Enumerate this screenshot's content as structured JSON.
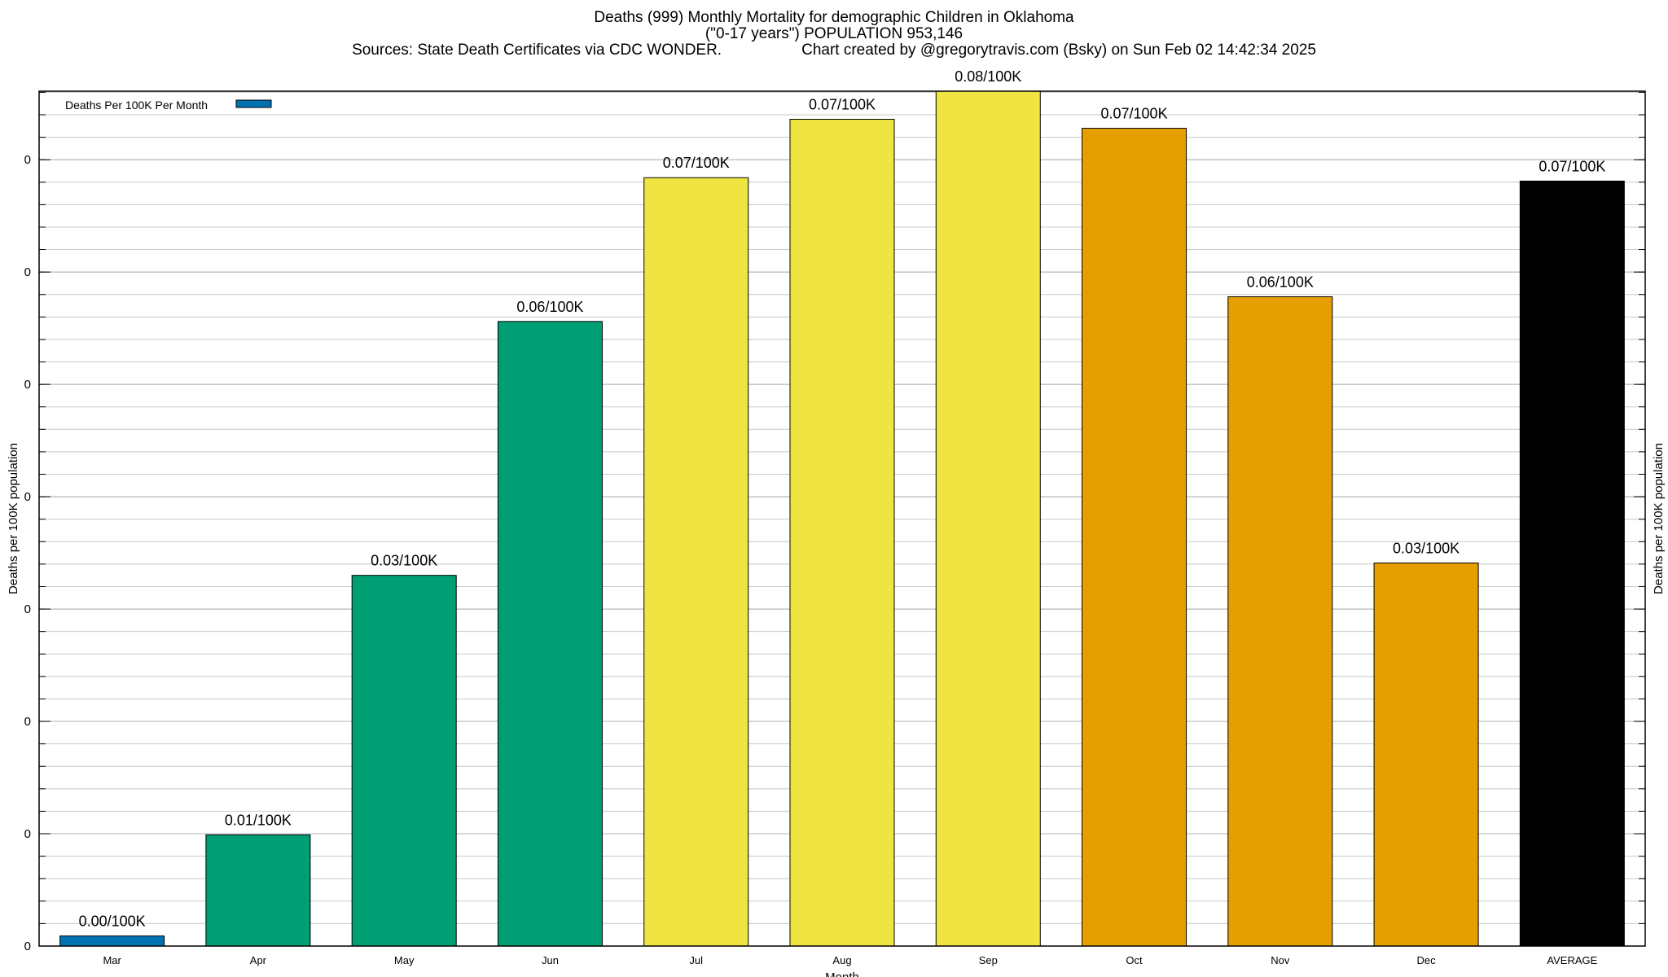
{
  "chart_data": {
    "type": "bar",
    "title": "Deaths (999) Monthly Mortality for demographic Children in Oklahoma",
    "subtitle": "(\"0-17 years\") POPULATION 953,146",
    "sources": "Sources: State Death Certificates via CDC WONDER.",
    "credit": "Chart created by @gregorytravis.com (Bsky) on Sun Feb 02 14:42:34 2025",
    "xlabel": "Month",
    "ylabel": "Deaths per 100K population",
    "y2label": "Deaths per 100K population",
    "legend": {
      "label": "Deaths Per 100K Per Month",
      "color": "#0072b2",
      "position": "top-left"
    },
    "ylim": [
      0,
      0.0761
    ],
    "ytick_values": [
      0,
      0.01,
      0.02,
      0.03,
      0.04,
      0.05,
      0.06,
      0.07
    ],
    "ytick_labels": [
      "0",
      "0",
      "0",
      "0",
      "0",
      "0",
      "0",
      "0"
    ],
    "grid": true,
    "categories": [
      "Mar",
      "Apr",
      "May",
      "Jun",
      "Jul",
      "Aug",
      "Sep",
      "Oct",
      "Nov",
      "Dec",
      "AVERAGE"
    ],
    "values": [
      0.0009,
      0.0099,
      0.033,
      0.0556,
      0.0684,
      0.0736,
      0.0761,
      0.0728,
      0.0578,
      0.0341,
      0.0681
    ],
    "value_labels": [
      "0.00/100K",
      "0.01/100K",
      "0.03/100K",
      "0.06/100K",
      "0.07/100K",
      "0.07/100K",
      "0.08/100K",
      "0.07/100K",
      "0.06/100K",
      "0.03/100K",
      "0.07/100K"
    ],
    "colors": [
      "#0072b2",
      "#009e73",
      "#009e73",
      "#009e73",
      "#f0e442",
      "#f0e442",
      "#f0e442",
      "#e69f00",
      "#e69f00",
      "#e69f00",
      "#000000"
    ]
  }
}
